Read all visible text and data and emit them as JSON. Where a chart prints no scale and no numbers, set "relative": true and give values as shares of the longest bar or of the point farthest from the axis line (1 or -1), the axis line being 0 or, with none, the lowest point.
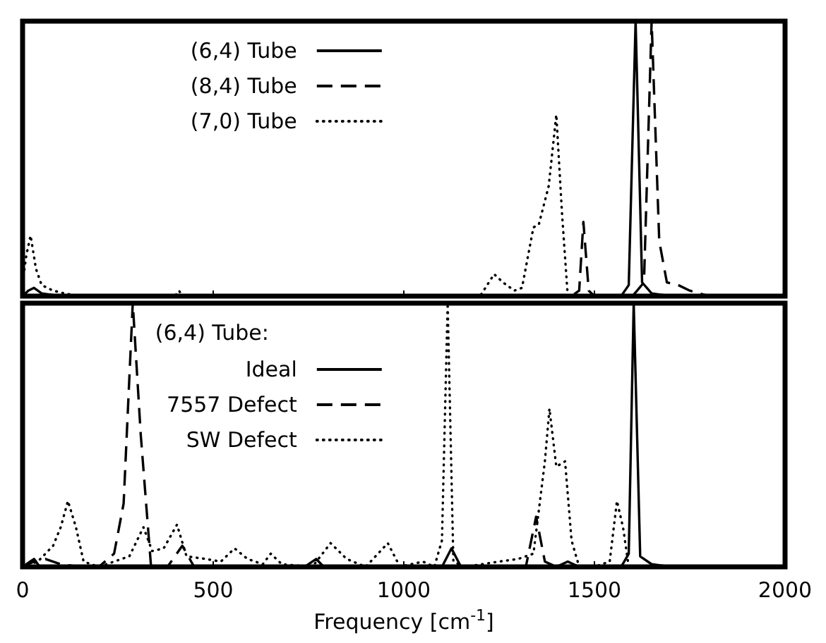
{
  "chart_data": [
    {
      "type": "line",
      "relative": true,
      "xlim": [
        0,
        2000
      ],
      "xticks": [
        0,
        500,
        1000,
        1500,
        2000
      ],
      "tick_labels": false,
      "legend": "top left",
      "series": [
        {
          "name": "(6,4) Tube",
          "color": "#000000",
          "line_style": "solid",
          "x": [
            0,
            15,
            30,
            50,
            100,
            500,
            1000,
            1500,
            1570,
            1590,
            1608,
            1625,
            1650,
            1700,
            2000
          ],
          "values": [
            0,
            0.02,
            0.03,
            0.01,
            0,
            0,
            0,
            0,
            0,
            0.04,
            1,
            0.05,
            0.01,
            0,
            0
          ]
        },
        {
          "name": "(8,4) Tube",
          "color": "#000000",
          "line_style": "dashed",
          "x": [
            0,
            100,
            1000,
            1440,
            1460,
            1471,
            1485,
            1500,
            1600,
            1630,
            1650,
            1670,
            1690,
            1720,
            1750,
            1800,
            2000
          ],
          "values": [
            0,
            0,
            0,
            0,
            0.02,
            0.27,
            0.02,
            0,
            0,
            0.05,
            1,
            0.2,
            0.05,
            0.04,
            0.02,
            0,
            0
          ]
        },
        {
          "name": "(7,0) Tube",
          "color": "#000000",
          "line_style": "dotted",
          "x": [
            0,
            10,
            21,
            35,
            50,
            80,
            110,
            150,
            400,
            410,
            420,
            500,
            1200,
            1237,
            1260,
            1290,
            1310,
            1340,
            1354,
            1380,
            1400,
            1415,
            1430,
            2000
          ],
          "values": [
            0.05,
            0.15,
            0.22,
            0.1,
            0.04,
            0.02,
            0.01,
            0,
            0,
            0.02,
            0,
            0,
            0,
            0.08,
            0.05,
            0.02,
            0.03,
            0.25,
            0.26,
            0.4,
            0.66,
            0.3,
            0,
            0
          ]
        }
      ]
    },
    {
      "type": "line",
      "relative": true,
      "xlim": [
        0,
        2000
      ],
      "xticks": [
        0,
        500,
        1000,
        1500,
        2000
      ],
      "tick_labels": "x",
      "xlabel": "Frequency [cm$^{-1}$]",
      "legend": "top left",
      "legend_title": "(6,4) Tube:",
      "series": [
        {
          "name": "Ideal",
          "color": "#000000",
          "line_style": "solid",
          "x": [
            0,
            20,
            30,
            45,
            100,
            700,
            740,
            770,
            790,
            1080,
            1100,
            1125,
            1150,
            1400,
            1430,
            1460,
            1570,
            1590,
            1603,
            1620,
            1650,
            1700,
            2000
          ],
          "values": [
            0,
            0.02,
            0.03,
            0,
            0,
            0,
            0,
            0.03,
            0,
            0,
            0,
            0.07,
            0,
            0,
            0.02,
            0,
            0,
            0.05,
            1,
            0.04,
            0.01,
            0,
            0
          ]
        },
        {
          "name": "7557 Defect",
          "color": "#000000",
          "line_style": "dashed",
          "x": [
            0,
            30,
            60,
            100,
            150,
            200,
            240,
            265,
            289,
            310,
            337,
            380,
            419,
            450,
            1000,
            1320,
            1347,
            1370,
            1400,
            2000
          ],
          "values": [
            0,
            0.02,
            0.03,
            0.01,
            0,
            0,
            0.05,
            0.24,
            1,
            0.5,
            0,
            0,
            0.08,
            0,
            0,
            0,
            0.19,
            0.02,
            0,
            0
          ]
        },
        {
          "name": "SW Defect",
          "color": "#000000",
          "line_style": "dotted",
          "x": [
            0,
            40,
            80,
            100,
            119,
            140,
            160,
            200,
            240,
            280,
            317,
            340,
            370,
            405,
            430,
            480,
            520,
            556,
            590,
            630,
            651,
            680,
            760,
            808,
            850,
            900,
            958,
            990,
            1050,
            1080,
            1100,
            1115,
            1130,
            1160,
            1250,
            1300,
            1340,
            1370,
            1382,
            1400,
            1423,
            1440,
            1460,
            1500,
            1540,
            1559,
            1575,
            1590,
            2000
          ],
          "values": [
            0,
            0.02,
            0.08,
            0.15,
            0.25,
            0.15,
            0.02,
            0,
            0.02,
            0.04,
            0.15,
            0.06,
            0.07,
            0.16,
            0.04,
            0.03,
            0.02,
            0.07,
            0.03,
            0.01,
            0.05,
            0.01,
            0,
            0.09,
            0.03,
            0,
            0.09,
            0,
            0.02,
            0,
            0.1,
            1,
            0.02,
            0,
            0.02,
            0.03,
            0.05,
            0.4,
            0.6,
            0.38,
            0.4,
            0.1,
            0,
            0,
            0.02,
            0.25,
            0.15,
            0,
            0
          ]
        }
      ]
    }
  ]
}
